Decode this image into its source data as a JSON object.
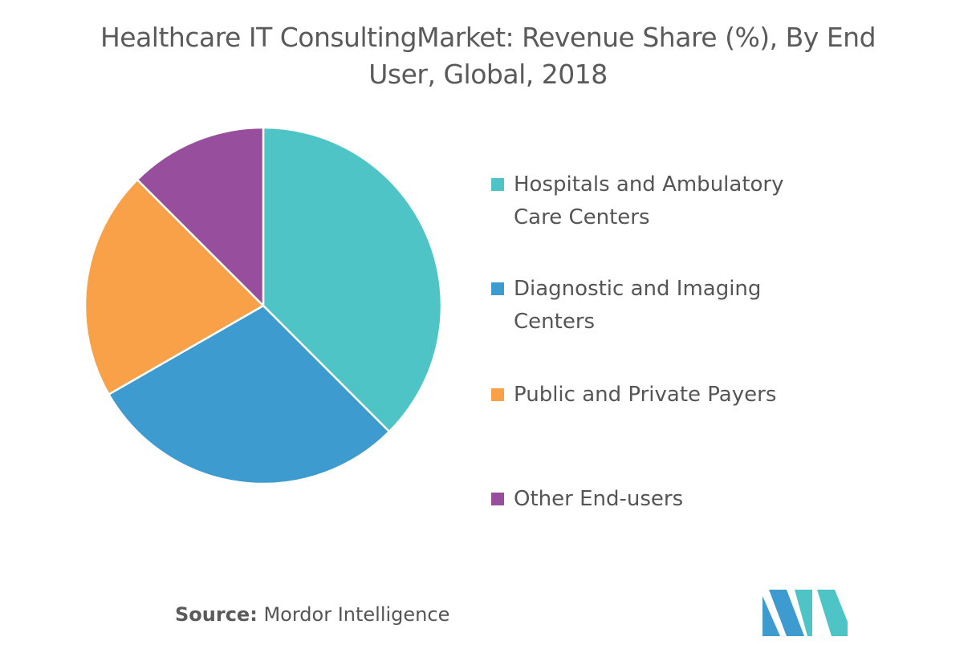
{
  "chart_data": {
    "type": "pie",
    "title": "Healthcare IT ConsultingMarket: Revenue Share (%), By End User, Global, 2018",
    "categories": [
      "Hospitals and Ambulatory Care Centers",
      "Diagnostic and Imaging Centers",
      "Public and Private Payers",
      "Other End-users"
    ],
    "values": [
      37.5,
      29.2,
      20.8,
      12.5
    ],
    "colors": [
      "#4fc4c6",
      "#3d9bcf",
      "#f9a148",
      "#974f9d"
    ],
    "source_label": "Source:",
    "source": "Mordor Intelligence"
  }
}
